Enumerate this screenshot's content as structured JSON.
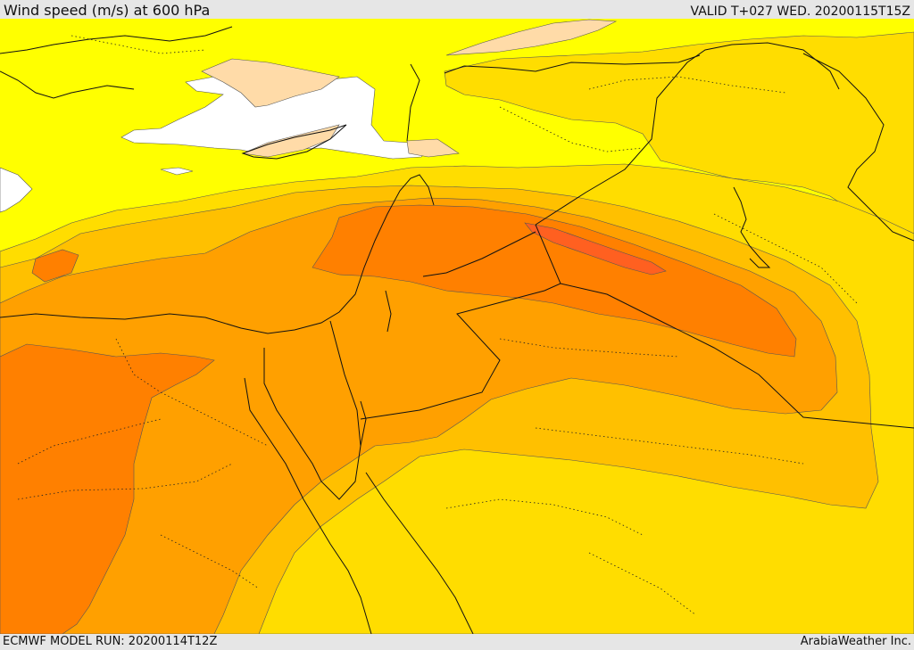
{
  "header": {
    "title": "Wind speed (m/s) at 600 hPa",
    "valid": "VALID T+027 WED. 20200115T15Z"
  },
  "footer": {
    "model_run": "ECMWF MODEL RUN: 20200114T12Z",
    "credit": "ArabiaWeather Inc."
  },
  "map": {
    "field": "wind speed",
    "level": "600 hPa",
    "unit": "m/s",
    "color_bands": [
      "#ffffff",
      "#ffdba8",
      "#ffff00",
      "#ffdd00",
      "#ffc000",
      "#ffa000",
      "#ff8000",
      "#ff6020"
    ]
  }
}
